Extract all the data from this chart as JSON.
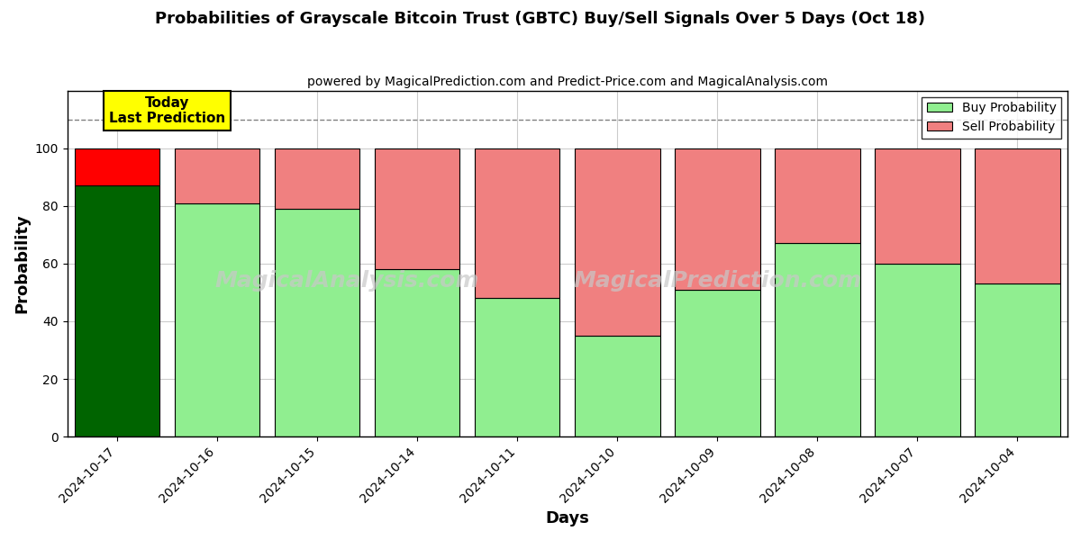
{
  "title": "Probabilities of Grayscale Bitcoin Trust (GBTC) Buy/Sell Signals Over 5 Days (Oct 18)",
  "subtitle": "powered by MagicalPrediction.com and Predict-Price.com and MagicalAnalysis.com",
  "xlabel": "Days",
  "ylabel": "Probability",
  "dates": [
    "2024-10-17",
    "2024-10-16",
    "2024-10-15",
    "2024-10-14",
    "2024-10-11",
    "2024-10-10",
    "2024-10-09",
    "2024-10-08",
    "2024-10-07",
    "2024-10-04"
  ],
  "buy_values": [
    87,
    81,
    79,
    58,
    48,
    35,
    51,
    67,
    60,
    53
  ],
  "sell_values": [
    13,
    19,
    21,
    42,
    52,
    65,
    49,
    33,
    40,
    47
  ],
  "today_buy_color": "#006400",
  "today_sell_color": "#FF0000",
  "buy_color": "#90EE90",
  "sell_color": "#F08080",
  "today_annotation_bg": "#FFFF00",
  "today_annotation_text": "Today\nLast Prediction",
  "legend_buy_label": "Buy Probability",
  "legend_sell_label": "Sell Probability",
  "ylim": [
    0,
    120
  ],
  "yticks": [
    0,
    20,
    40,
    60,
    80,
    100
  ],
  "dashed_line_y": 110,
  "watermark1": "MagicalAnalysis.com",
  "watermark2": "MagicalPrediction.com",
  "bg_color": "#ffffff",
  "grid_color": "#cccccc",
  "bar_edge_color": "#000000",
  "bar_linewidth": 0.8,
  "bar_width": 0.85
}
